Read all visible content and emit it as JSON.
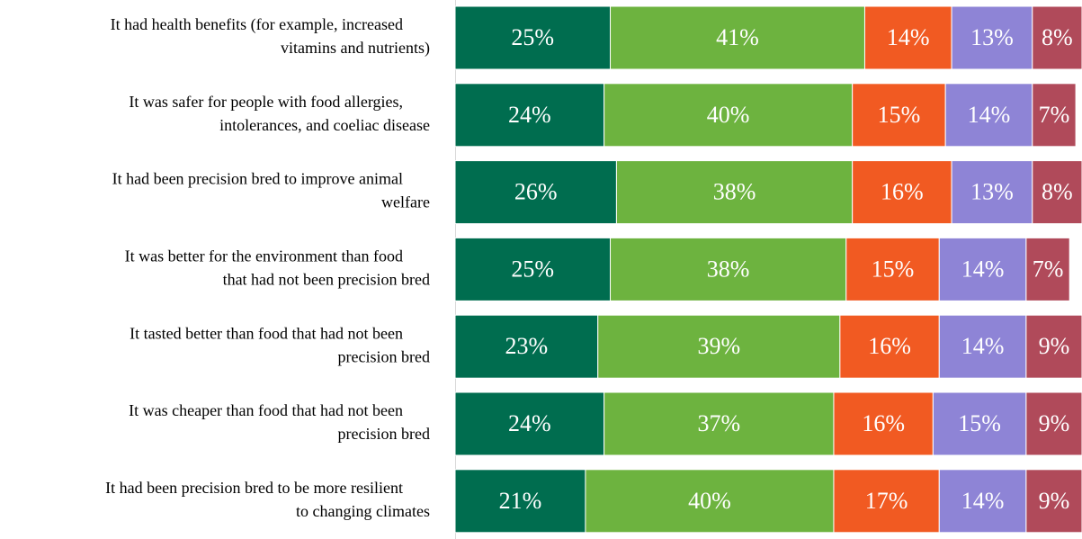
{
  "chart_data": {
    "type": "stacked-bar-horizontal",
    "categories": [
      [
        "It had health benefits (for example, increased",
        "vitamins and nutrients)"
      ],
      [
        "It was safer for people with food allergies,",
        "intolerances, and coeliac disease"
      ],
      [
        "It had been precision bred to improve animal",
        "welfare"
      ],
      [
        "It was better for the environment than food",
        "that had not been precision bred"
      ],
      [
        "It tasted better than food that had not been",
        "precision bred"
      ],
      [
        "It was cheaper than food that had not been",
        "precision bred"
      ],
      [
        "It had been precision bred to be more resilient",
        "to changing climates"
      ]
    ],
    "xlim": [
      0,
      101
    ],
    "series": [
      {
        "color": "#006d4f",
        "values": [
          25,
          24,
          26,
          25,
          23,
          24,
          21
        ],
        "value_labels": [
          "25%",
          "24%",
          "26%",
          "25%",
          "23%",
          "24%",
          "21%"
        ]
      },
      {
        "color": "#6db33f",
        "values": [
          41,
          40,
          38,
          38,
          39,
          37,
          40
        ],
        "value_labels": [
          "41%",
          "40%",
          "38%",
          "38%",
          "39%",
          "37%",
          "40%"
        ]
      },
      {
        "color": "#f15a22",
        "values": [
          14,
          15,
          16,
          15,
          16,
          16,
          17
        ],
        "value_labels": [
          "14%",
          "15%",
          "16%",
          "15%",
          "16%",
          "16%",
          "17%"
        ]
      },
      {
        "color": "#8e84d6",
        "values": [
          13,
          14,
          13,
          14,
          14,
          15,
          14
        ],
        "value_labels": [
          "13%",
          "14%",
          "13%",
          "14%",
          "14%",
          "15%",
          "14%"
        ]
      },
      {
        "color": "#b04a5a",
        "values": [
          8,
          7,
          8,
          7,
          9,
          9,
          9
        ],
        "value_labels": [
          "8%",
          "7%",
          "8%",
          "7%",
          "9%",
          "9%",
          "9%"
        ]
      }
    ]
  }
}
